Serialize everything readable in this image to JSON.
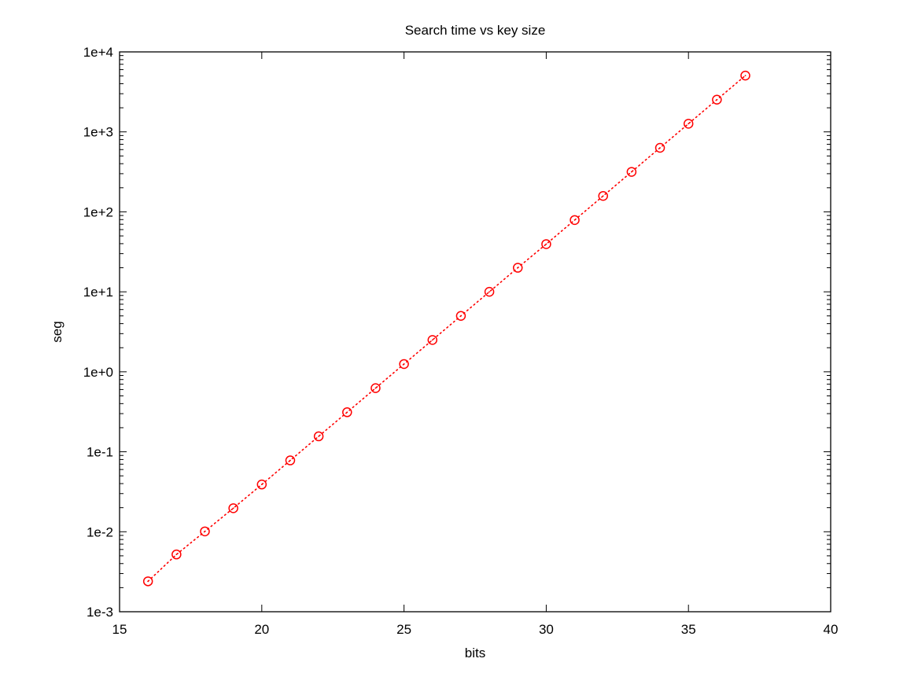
{
  "chart_data": {
    "type": "scatter",
    "title": "Search time vs key size",
    "xlabel": "bits",
    "ylabel": "seg",
    "xlim": [
      15,
      40
    ],
    "ylim": [
      0.001,
      10000
    ],
    "yscale": "log",
    "x_ticks": [
      15,
      20,
      25,
      30,
      35,
      40
    ],
    "x_tick_labels": [
      "15",
      "20",
      "25",
      "30",
      "35",
      "40"
    ],
    "y_ticks": [
      0.001,
      0.01,
      0.1,
      1,
      10,
      100,
      1000,
      10000
    ],
    "y_tick_labels": [
      "1e-3",
      "1e-2",
      "1e-1",
      "1e+0",
      "1e+1",
      "1e+2",
      "1e+3",
      "1e+4"
    ],
    "grid": false,
    "legend": "none",
    "series": [
      {
        "color": "#ff0000",
        "marker": "circle",
        "line_style": "dotted",
        "points": [
          {
            "x": 16,
            "y": 0.0024
          },
          {
            "x": 17,
            "y": 0.0052
          },
          {
            "x": 18,
            "y": 0.0101
          },
          {
            "x": 19,
            "y": 0.0197
          },
          {
            "x": 20,
            "y": 0.039
          },
          {
            "x": 21,
            "y": 0.078
          },
          {
            "x": 22,
            "y": 0.156
          },
          {
            "x": 23,
            "y": 0.312
          },
          {
            "x": 24,
            "y": 0.625
          },
          {
            "x": 25,
            "y": 1.25
          },
          {
            "x": 26,
            "y": 2.5
          },
          {
            "x": 27,
            "y": 5.0
          },
          {
            "x": 28,
            "y": 10.0
          },
          {
            "x": 29,
            "y": 20.0
          },
          {
            "x": 30,
            "y": 39.5
          },
          {
            "x": 31,
            "y": 79.0
          },
          {
            "x": 32,
            "y": 158.0
          },
          {
            "x": 33,
            "y": 316.0
          },
          {
            "x": 34,
            "y": 632.0
          },
          {
            "x": 35,
            "y": 1264.0
          },
          {
            "x": 36,
            "y": 2528.0
          },
          {
            "x": 37,
            "y": 5056.0
          }
        ]
      }
    ]
  }
}
